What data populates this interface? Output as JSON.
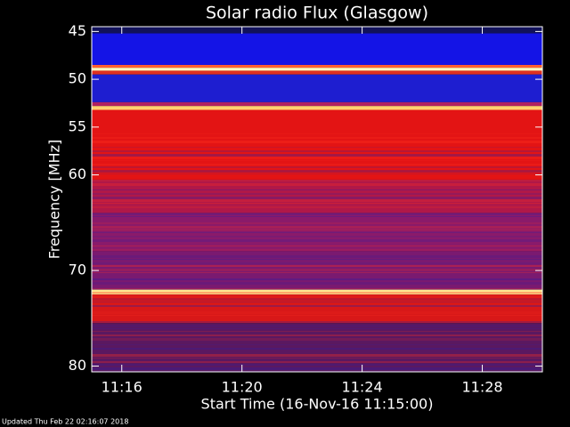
{
  "chart_data": {
    "type": "spectrogram",
    "title": "Solar radio Flux (Glasgow)",
    "y_label": "Frequency [MHz]",
    "x_label": "Start Time (16-Nov-16 11:15:00)",
    "footer": "Updated Thu Feb 22 02:16:07 2018",
    "xlim": [
      15,
      30
    ],
    "xticks": [
      {
        "value": 16,
        "label": "11:16"
      },
      {
        "value": 20,
        "label": "11:20"
      },
      {
        "value": 24,
        "label": "11:24"
      },
      {
        "value": 28,
        "label": "11:28"
      }
    ],
    "ylim": [
      44.5,
      80.6
    ],
    "yticks": [
      45,
      50,
      55,
      60,
      70,
      80
    ],
    "y_inverted": true,
    "bands": [
      {
        "from": 44.5,
        "to": 45.2,
        "color": "#12125a"
      },
      {
        "from": 45.2,
        "to": 48.5,
        "color": "#1414e6"
      },
      {
        "from": 48.5,
        "to": 48.8,
        "color": "#ff6030"
      },
      {
        "from": 48.8,
        "to": 49.1,
        "color": "#ffffc0"
      },
      {
        "from": 49.1,
        "to": 49.5,
        "color": "#e03020"
      },
      {
        "from": 49.5,
        "to": 52.4,
        "color": "#1e1ed0"
      },
      {
        "from": 52.4,
        "to": 52.8,
        "color": "#b02060"
      },
      {
        "from": 52.8,
        "to": 53.2,
        "color": "#ffd070"
      },
      {
        "from": 53.2,
        "to": 60.5,
        "color": "#e31414"
      },
      {
        "from": 60.5,
        "to": 64,
        "color": "#b01848"
      },
      {
        "from": 64,
        "to": 68,
        "color": "#8a1a6a"
      },
      {
        "from": 68,
        "to": 72,
        "color": "#7a1a70"
      },
      {
        "from": 72,
        "to": 72.5,
        "color": "#ffe890"
      },
      {
        "from": 72.5,
        "to": 75.5,
        "color": "#d81818"
      },
      {
        "from": 75.5,
        "to": 80.6,
        "color": "#5a1860"
      }
    ]
  }
}
